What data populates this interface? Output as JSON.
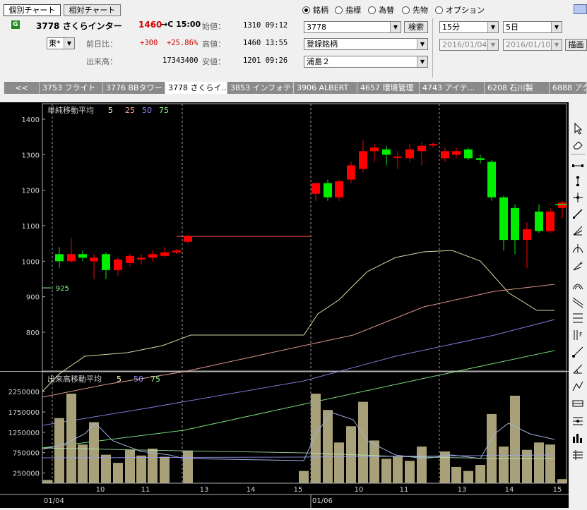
{
  "chart_buttons": {
    "individual": "個別チャート",
    "relative": "相対チャート"
  },
  "stock": {
    "badge": "G",
    "code_name": "3778 さくらインター",
    "price": "1460",
    "arrow_time": "→C 15:00",
    "exchange": "東*",
    "labels": {
      "open": "始値：",
      "high": "高値：",
      "low": "安値：",
      "change": "前日比：",
      "volume": "出来高："
    },
    "open": "1310 09:12",
    "high": "1460 13:55",
    "low": "1201 09:26",
    "change": "+300",
    "change_pct": "+25.86%",
    "volume": "17343400"
  },
  "modes": [
    {
      "label": "銘柄",
      "selected": true
    },
    {
      "label": "指標",
      "selected": false
    },
    {
      "label": "為替",
      "selected": false
    },
    {
      "label": "先物",
      "selected": false
    },
    {
      "label": "オプション",
      "selected": false
    }
  ],
  "search": {
    "value": "3778",
    "button": "検索",
    "list1": "登録銘柄",
    "list2": "浦島２"
  },
  "period": {
    "interval": "15分",
    "span": "5日",
    "from": "2016/01/04",
    "to": "2016/01/10",
    "draw_button": "描画"
  },
  "tabs": [
    "<<",
    "3753 フライト",
    "3776 BBタワー",
    "3778 さくらイ...",
    "3853 インフォテリ",
    "3906 ALBERT",
    "4657 環境管理",
    "4743 アイテ...",
    "6208 石川製",
    "6888 アク"
  ],
  "active_tab": 3,
  "colors": {
    "up": "#ff0000",
    "down": "#00ee00",
    "ma5": "#ffffc0",
    "ma25": "#ffb0a0",
    "ma50": "#9090ff",
    "ma75": "#90ff90",
    "volume_bar": "#a8a078",
    "background": "#000000"
  },
  "price_panel": {
    "title": "単純移動平均",
    "ma_labels": [
      "5",
      "25",
      "50",
      "75"
    ],
    "y_ticks": [
      "1400",
      "1300",
      "1200",
      "1100",
      "1000",
      "900",
      "800"
    ],
    "marker": "925"
  },
  "volume_panel": {
    "title": "出来高移動平均",
    "ma_labels": [
      "5",
      "50",
      "75"
    ],
    "y_ticks": [
      "2250000",
      "1750000",
      "1250000",
      "750000",
      "250000"
    ]
  },
  "x_axis": {
    "day_labels": [
      "10",
      "11",
      "13",
      "14",
      "15",
      "10",
      "11",
      "13",
      "14",
      "15"
    ],
    "date_labels": [
      "01/04",
      "01/06"
    ]
  },
  "toolbar_icons": [
    "cursor-icon",
    "eraser-icon",
    "segment-icon",
    "vertical-line-icon",
    "crosshair-icon",
    "trend-line-icon",
    "fan-line-icon",
    "fibonacci-icon",
    "fibonacci-f-icon",
    "arc-icon",
    "regression-icon",
    "channel-icon",
    "parallel-f-icon",
    "ray-icon",
    "angle-icon",
    "polyline-icon",
    "band-icon",
    "pivot-icon",
    "bars-icon",
    "grid-icon"
  ],
  "chart_data": {
    "type": "candlestick",
    "price_scale": {
      "min": 725,
      "max": 1440
    },
    "candles": [
      {
        "o": 1020,
        "h": 1040,
        "l": 980,
        "c": 1000
      },
      {
        "o": 1000,
        "h": 1065,
        "l": 995,
        "c": 1020
      },
      {
        "o": 1020,
        "h": 1030,
        "l": 1000,
        "c": 1010
      },
      {
        "o": 1000,
        "h": 1020,
        "l": 950,
        "c": 1010
      },
      {
        "o": 1020,
        "h": 1025,
        "l": 950,
        "c": 975
      },
      {
        "o": 975,
        "h": 1010,
        "l": 960,
        "c": 1005
      },
      {
        "o": 995,
        "h": 1020,
        "l": 985,
        "c": 1015
      },
      {
        "o": 1005,
        "h": 1020,
        "l": 990,
        "c": 1010
      },
      {
        "o": 1010,
        "h": 1030,
        "l": 1000,
        "c": 1020
      },
      {
        "o": 1015,
        "h": 1040,
        "l": 1010,
        "c": 1025
      },
      {
        "o": 1025,
        "h": 1035,
        "l": 1020,
        "c": 1030
      },
      {
        "o": 1055,
        "h": 1075,
        "l": 1050,
        "c": 1070
      },
      {
        "o": 1190,
        "h": 1220,
        "l": 1170,
        "c": 1220
      },
      {
        "o": 1220,
        "h": 1230,
        "l": 1170,
        "c": 1180
      },
      {
        "o": 1180,
        "h": 1230,
        "l": 1170,
        "c": 1225
      },
      {
        "o": 1230,
        "h": 1280,
        "l": 1220,
        "c": 1270
      },
      {
        "o": 1260,
        "h": 1340,
        "l": 1250,
        "c": 1310
      },
      {
        "o": 1310,
        "h": 1330,
        "l": 1280,
        "c": 1320
      },
      {
        "o": 1315,
        "h": 1325,
        "l": 1270,
        "c": 1300
      },
      {
        "o": 1295,
        "h": 1310,
        "l": 1260,
        "c": 1295
      },
      {
        "o": 1290,
        "h": 1330,
        "l": 1280,
        "c": 1315
      },
      {
        "o": 1310,
        "h": 1335,
        "l": 1270,
        "c": 1325
      },
      {
        "o": 1330,
        "h": 1335,
        "l": 1320,
        "c": 1330
      },
      {
        "o": 1290,
        "h": 1320,
        "l": 1280,
        "c": 1310
      },
      {
        "o": 1300,
        "h": 1320,
        "l": 1290,
        "c": 1310
      },
      {
        "o": 1315,
        "h": 1320,
        "l": 1285,
        "c": 1290
      },
      {
        "o": 1290,
        "h": 1300,
        "l": 1275,
        "c": 1285
      },
      {
        "o": 1280,
        "h": 1285,
        "l": 1170,
        "c": 1180
      },
      {
        "o": 1180,
        "h": 1185,
        "l": 1030,
        "c": 1060
      },
      {
        "o": 1150,
        "h": 1160,
        "l": 1020,
        "c": 1060
      },
      {
        "o": 1060,
        "h": 1110,
        "l": 980,
        "c": 1090
      },
      {
        "o": 1140,
        "h": 1160,
        "l": 1080,
        "c": 1085
      },
      {
        "o": 1085,
        "h": 1150,
        "l": 1080,
        "c": 1140
      },
      {
        "o": 1150,
        "h": 1170,
        "l": 1120,
        "c": 1165
      },
      {
        "o": 1160,
        "h": 1170,
        "l": 1150,
        "c": 1160
      }
    ],
    "candle_x": [
      84,
      101,
      117,
      133,
      150,
      167,
      184,
      200,
      216,
      233,
      250,
      266,
      447,
      464,
      480,
      497,
      514,
      530,
      547,
      563,
      580,
      597,
      613,
      630,
      646,
      663,
      680,
      696,
      713,
      729,
      746,
      763,
      779,
      796,
      812
    ],
    "ma_series": [
      {
        "name": "5",
        "points": [
          [
            60,
            410
          ],
          [
            84,
            385
          ],
          [
            120,
            360
          ],
          [
            180,
            355
          ],
          [
            230,
            345
          ],
          [
            270,
            330
          ],
          [
            320,
            330
          ],
          [
            430,
            330
          ],
          [
            450,
            300
          ],
          [
            480,
            280
          ],
          [
            520,
            240
          ],
          [
            560,
            220
          ],
          [
            600,
            212
          ],
          [
            640,
            210
          ],
          [
            680,
            225
          ],
          [
            720,
            270
          ],
          [
            760,
            295
          ],
          [
            785,
            295
          ]
        ]
      },
      {
        "name": "25",
        "points": [
          [
            60,
            418
          ],
          [
            150,
            400
          ],
          [
            260,
            382
          ],
          [
            430,
            345
          ],
          [
            500,
            330
          ],
          [
            600,
            290
          ],
          [
            700,
            268
          ],
          [
            785,
            258
          ]
        ]
      },
      {
        "name": "50",
        "points": [
          [
            60,
            458
          ],
          [
            200,
            435
          ],
          [
            430,
            395
          ],
          [
            560,
            360
          ],
          [
            700,
            330
          ],
          [
            785,
            308
          ]
        ]
      },
      {
        "name": "75",
        "points": [
          [
            60,
            490
          ],
          [
            260,
            465
          ],
          [
            430,
            428
          ],
          [
            560,
            400
          ],
          [
            700,
            370
          ],
          [
            785,
            352
          ]
        ]
      }
    ],
    "volume": [
      80000,
      1600000,
      2200000,
      950000,
      1500000,
      700000,
      500000,
      820000,
      680000,
      850000,
      650000,
      0,
      800000,
      300000,
      2200000,
      1800000,
      1000000,
      1400000,
      2000000,
      1050000,
      600000,
      650000,
      550000,
      900000,
      0,
      780000,
      400000,
      300000,
      450000,
      1700000,
      900000,
      2150000,
      820000,
      1000000,
      950000,
      100000
    ],
    "volume_x": [
      67,
      84,
      101,
      117,
      133,
      150,
      167,
      184,
      200,
      216,
      233,
      250,
      266,
      430,
      447,
      464,
      480,
      497,
      514,
      530,
      547,
      563,
      580,
      597,
      613,
      630,
      646,
      663,
      680,
      696,
      713,
      729,
      746,
      763,
      779,
      796
    ],
    "volume_scale": {
      "max": 2600000
    }
  }
}
